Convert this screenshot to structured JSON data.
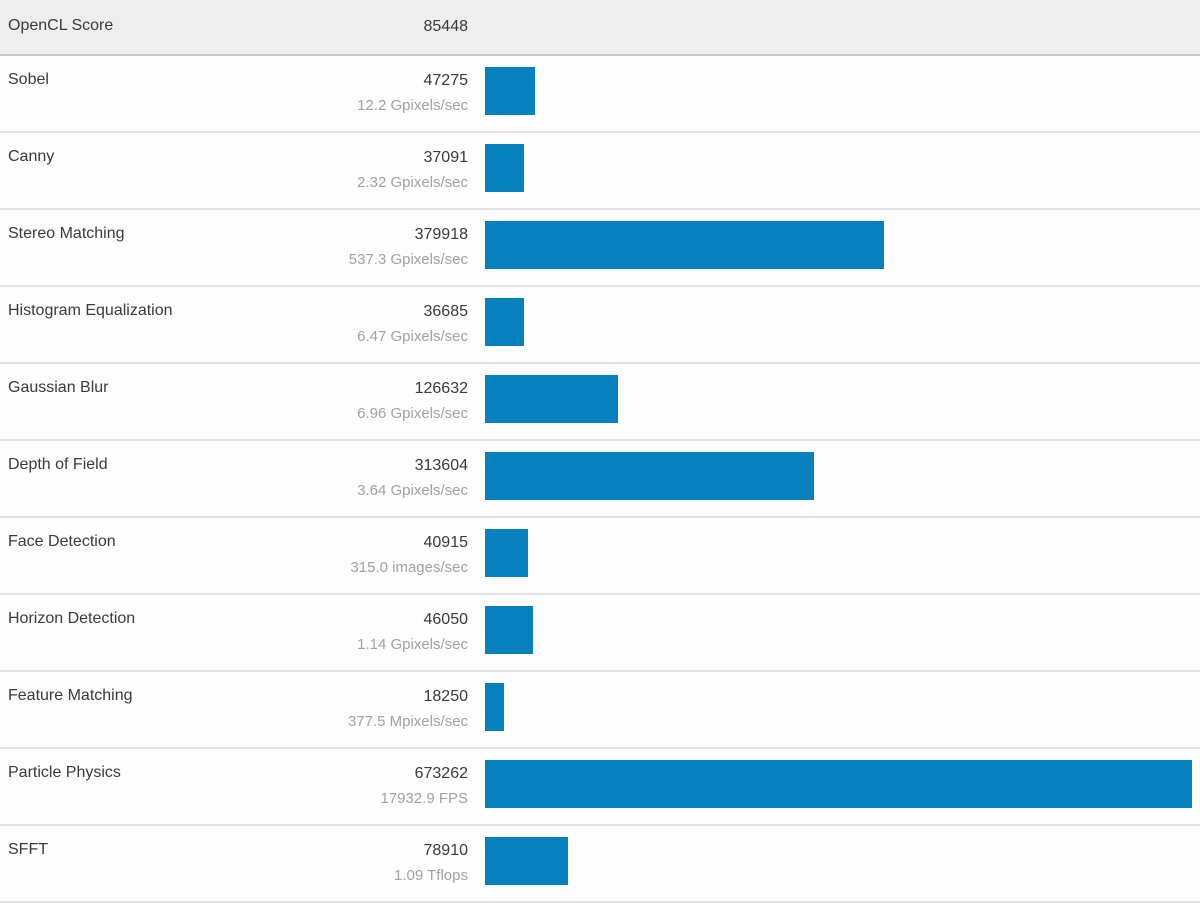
{
  "header": {
    "label": "OpenCL Score",
    "score": "85448"
  },
  "bar_color": "#0781be",
  "max_score": 673262,
  "rows": [
    {
      "name": "Sobel",
      "score": 47275,
      "rate": "12.2 Gpixels/sec"
    },
    {
      "name": "Canny",
      "score": 37091,
      "rate": "2.32 Gpixels/sec"
    },
    {
      "name": "Stereo Matching",
      "score": 379918,
      "rate": "537.3 Gpixels/sec"
    },
    {
      "name": "Histogram Equalization",
      "score": 36685,
      "rate": "6.47 Gpixels/sec"
    },
    {
      "name": "Gaussian Blur",
      "score": 126632,
      "rate": "6.96 Gpixels/sec"
    },
    {
      "name": "Depth of Field",
      "score": 313604,
      "rate": "3.64 Gpixels/sec"
    },
    {
      "name": "Face Detection",
      "score": 40915,
      "rate": "315.0 images/sec"
    },
    {
      "name": "Horizon Detection",
      "score": 46050,
      "rate": "1.14 Gpixels/sec"
    },
    {
      "name": "Feature Matching",
      "score": 18250,
      "rate": "377.5 Mpixels/sec"
    },
    {
      "name": "Particle Physics",
      "score": 673262,
      "rate": "17932.9 FPS"
    },
    {
      "name": "SFFT",
      "score": 78910,
      "rate": "1.09 Tflops"
    }
  ],
  "chart_data": {
    "type": "bar",
    "orientation": "horizontal",
    "title": "OpenCL Score",
    "total_score": 85448,
    "categories": [
      "Sobel",
      "Canny",
      "Stereo Matching",
      "Histogram Equalization",
      "Gaussian Blur",
      "Depth of Field",
      "Face Detection",
      "Horizon Detection",
      "Feature Matching",
      "Particle Physics",
      "SFFT"
    ],
    "values": [
      47275,
      37091,
      379918,
      36685,
      126632,
      313604,
      40915,
      46050,
      18250,
      673262,
      78910
    ],
    "value_labels": [
      "12.2 Gpixels/sec",
      "2.32 Gpixels/sec",
      "537.3 Gpixels/sec",
      "6.47 Gpixels/sec",
      "6.96 Gpixels/sec",
      "3.64 Gpixels/sec",
      "315.0 images/sec",
      "1.14 Gpixels/sec",
      "377.5 Mpixels/sec",
      "17932.9 FPS",
      "1.09 Tflops"
    ],
    "xlim": [
      0,
      673262
    ],
    "grid": false,
    "legend": false,
    "bar_color": "#0781be"
  }
}
